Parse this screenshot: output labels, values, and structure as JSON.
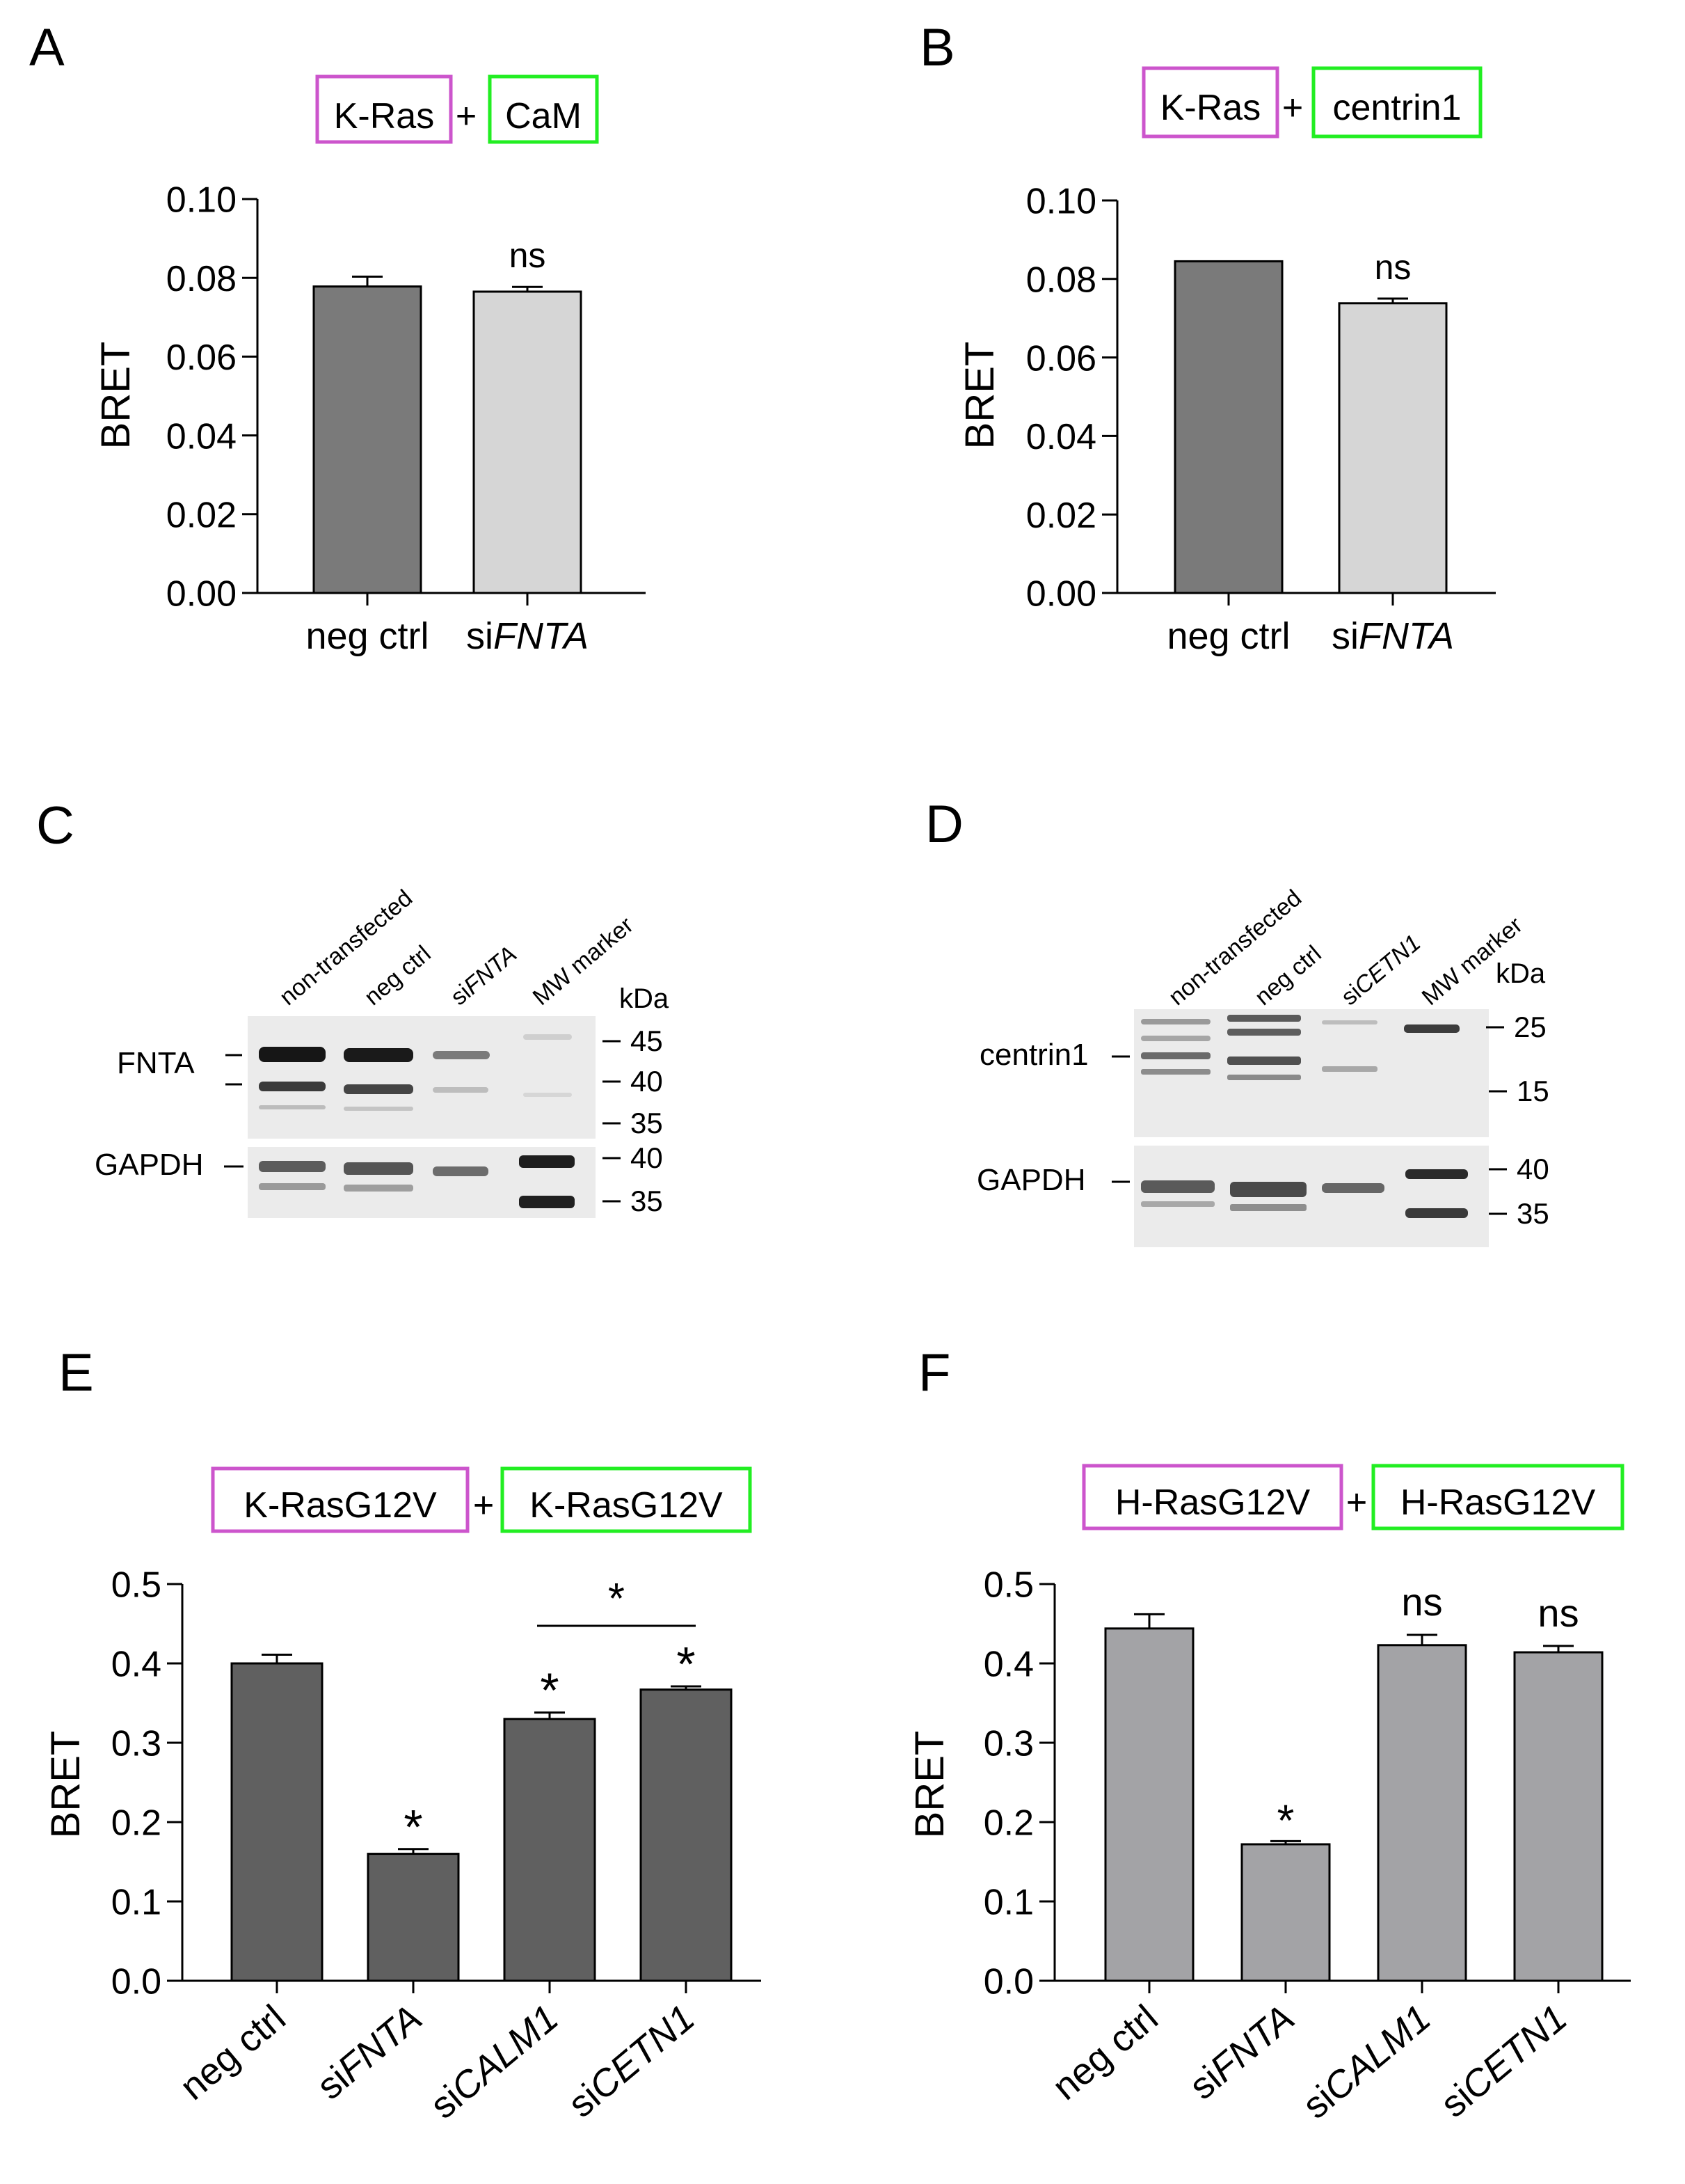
{
  "panels": [
    {
      "letter": "A"
    },
    {
      "letter": "B"
    },
    {
      "letter": "C"
    },
    {
      "letter": "D"
    },
    {
      "letter": "E"
    },
    {
      "letter": "F"
    }
  ],
  "colors": {
    "donor_box": "#cc55cc",
    "acceptor_box": "#22ee22",
    "bar_dark": "#7a7a7a",
    "bar_light": "#d6d6d6",
    "bar_E": "#606060",
    "bar_F": "#a3a3a6"
  },
  "chart_data": [
    {
      "panel": "A",
      "type": "bar",
      "title_parts": {
        "donor": "K-Ras",
        "plus": "+",
        "acceptor": "CaM"
      },
      "ylabel": "BRET",
      "ylim": [
        0,
        0.1
      ],
      "yticks": [
        "0.00",
        "0.02",
        "0.04",
        "0.06",
        "0.08",
        "0.10"
      ],
      "categories": [
        {
          "prefix": "neg ctrl",
          "italic": ""
        },
        {
          "prefix": "si",
          "italic": "FNTA"
        }
      ],
      "values": [
        0.0778,
        0.0765
      ],
      "errors": [
        0.0025,
        0.0012
      ],
      "annotations": [
        "",
        "ns"
      ]
    },
    {
      "panel": "B",
      "type": "bar",
      "title_parts": {
        "donor": "K-Ras",
        "plus": "+",
        "acceptor": "centrin1"
      },
      "ylabel": "BRET",
      "ylim": [
        0,
        0.1
      ],
      "yticks": [
        "0.00",
        "0.02",
        "0.04",
        "0.06",
        "0.08",
        "0.10"
      ],
      "categories": [
        {
          "prefix": "neg ctrl",
          "italic": ""
        },
        {
          "prefix": "si",
          "italic": "FNTA"
        }
      ],
      "values": [
        0.0845,
        0.0738
      ],
      "errors": [
        0,
        0.0012
      ],
      "annotations": [
        "",
        "ns"
      ]
    },
    {
      "panel": "E",
      "type": "bar",
      "title_parts": {
        "donor": "K-RasG12V",
        "plus": "+",
        "acceptor": "K-RasG12V"
      },
      "ylabel": "BRET",
      "ylim": [
        0,
        0.5
      ],
      "yticks": [
        "0.0",
        "0.1",
        "0.2",
        "0.3",
        "0.4",
        "0.5"
      ],
      "categories": [
        {
          "prefix": "neg ctrl",
          "italic": ""
        },
        {
          "prefix": "si",
          "italic": "FNTA"
        },
        {
          "prefix": "si",
          "italic": "CALM1"
        },
        {
          "prefix": "si",
          "italic": "CETN1"
        }
      ],
      "values": [
        0.4,
        0.16,
        0.33,
        0.367
      ],
      "errors": [
        0.011,
        0.006,
        0.008,
        0.004
      ],
      "annotations": [
        "",
        "*",
        "*",
        "*"
      ],
      "bracket": {
        "from": 2,
        "to": 3,
        "label": "*"
      }
    },
    {
      "panel": "F",
      "type": "bar",
      "title_parts": {
        "donor": "H-RasG12V",
        "plus": "+",
        "acceptor": "H-RasG12V"
      },
      "ylabel": "BRET",
      "ylim": [
        0,
        0.5
      ],
      "yticks": [
        "0.0",
        "0.1",
        "0.2",
        "0.3",
        "0.4",
        "0.5"
      ],
      "categories": [
        {
          "prefix": "neg ctrl",
          "italic": ""
        },
        {
          "prefix": "si",
          "italic": "FNTA"
        },
        {
          "prefix": "si",
          "italic": "CALM1"
        },
        {
          "prefix": "si",
          "italic": "CETN1"
        }
      ],
      "values": [
        0.444,
        0.172,
        0.423,
        0.414
      ],
      "errors": [
        0.018,
        0.004,
        0.013,
        0.008
      ],
      "annotations": [
        "",
        "*",
        "ns",
        "ns"
      ]
    }
  ],
  "blots": [
    {
      "panel": "C",
      "lanes": [
        {
          "prefix": "non-transfected",
          "italic": ""
        },
        {
          "prefix": "neg ctrl",
          "italic": ""
        },
        {
          "prefix": "si",
          "italic": "FNTA"
        },
        {
          "prefix": "MW marker",
          "italic": ""
        }
      ],
      "unit": "kDa",
      "top_label": "FNTA",
      "top_markers": [
        "45",
        "40",
        "35"
      ],
      "bottom_label": "GAPDH",
      "bottom_markers": [
        "40",
        "35"
      ]
    },
    {
      "panel": "D",
      "lanes": [
        {
          "prefix": "non-transfected",
          "italic": ""
        },
        {
          "prefix": "neg ctrl",
          "italic": ""
        },
        {
          "prefix": "si",
          "italic": "CETN1"
        },
        {
          "prefix": "MW marker",
          "italic": ""
        }
      ],
      "unit": "kDa",
      "top_label": "centrin1",
      "top_markers": [
        "25",
        "15"
      ],
      "bottom_label": "GAPDH",
      "bottom_markers": [
        "40",
        "35"
      ]
    }
  ]
}
